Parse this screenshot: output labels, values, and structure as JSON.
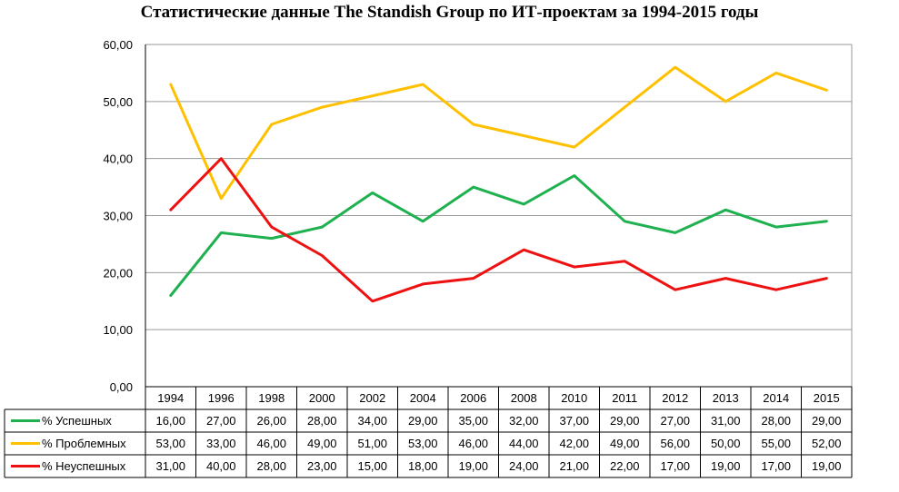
{
  "chart_data": {
    "type": "line",
    "title": "Статистические данные The Standish Group по ИТ-проектам за 1994-2015 годы",
    "categories": [
      "1994",
      "1996",
      "1998",
      "2000",
      "2002",
      "2004",
      "2006",
      "2008",
      "2010",
      "2011",
      "2012",
      "2013",
      "2014",
      "2015"
    ],
    "ylim": [
      0,
      60
    ],
    "yticks": [
      "0,00",
      "10,00",
      "20,00",
      "30,00",
      "40,00",
      "50,00",
      "60,00"
    ],
    "grid": true,
    "legend_placement": "data-table",
    "series": [
      {
        "name": "% Успешных",
        "color": "#1fb04f",
        "values": [
          16,
          27,
          26,
          28,
          34,
          29,
          35,
          32,
          37,
          29,
          27,
          31,
          28,
          29
        ],
        "labels": [
          "16,00",
          "27,00",
          "26,00",
          "28,00",
          "34,00",
          "29,00",
          "35,00",
          "32,00",
          "37,00",
          "29,00",
          "27,00",
          "31,00",
          "28,00",
          "29,00"
        ]
      },
      {
        "name": "% Проблемных",
        "color": "#ffc000",
        "values": [
          53,
          33,
          46,
          49,
          51,
          53,
          46,
          44,
          42,
          49,
          56,
          50,
          55,
          52
        ],
        "labels": [
          "53,00",
          "33,00",
          "46,00",
          "49,00",
          "51,00",
          "53,00",
          "46,00",
          "44,00",
          "42,00",
          "49,00",
          "56,00",
          "50,00",
          "55,00",
          "52,00"
        ]
      },
      {
        "name": "% Неуспешных",
        "color": "#ee1111",
        "values": [
          31,
          40,
          28,
          23,
          15,
          18,
          19,
          24,
          21,
          22,
          17,
          19,
          17,
          19
        ],
        "labels": [
          "31,00",
          "40,00",
          "28,00",
          "23,00",
          "15,00",
          "18,00",
          "19,00",
          "24,00",
          "21,00",
          "22,00",
          "17,00",
          "19,00",
          "17,00",
          "19,00"
        ]
      }
    ]
  }
}
